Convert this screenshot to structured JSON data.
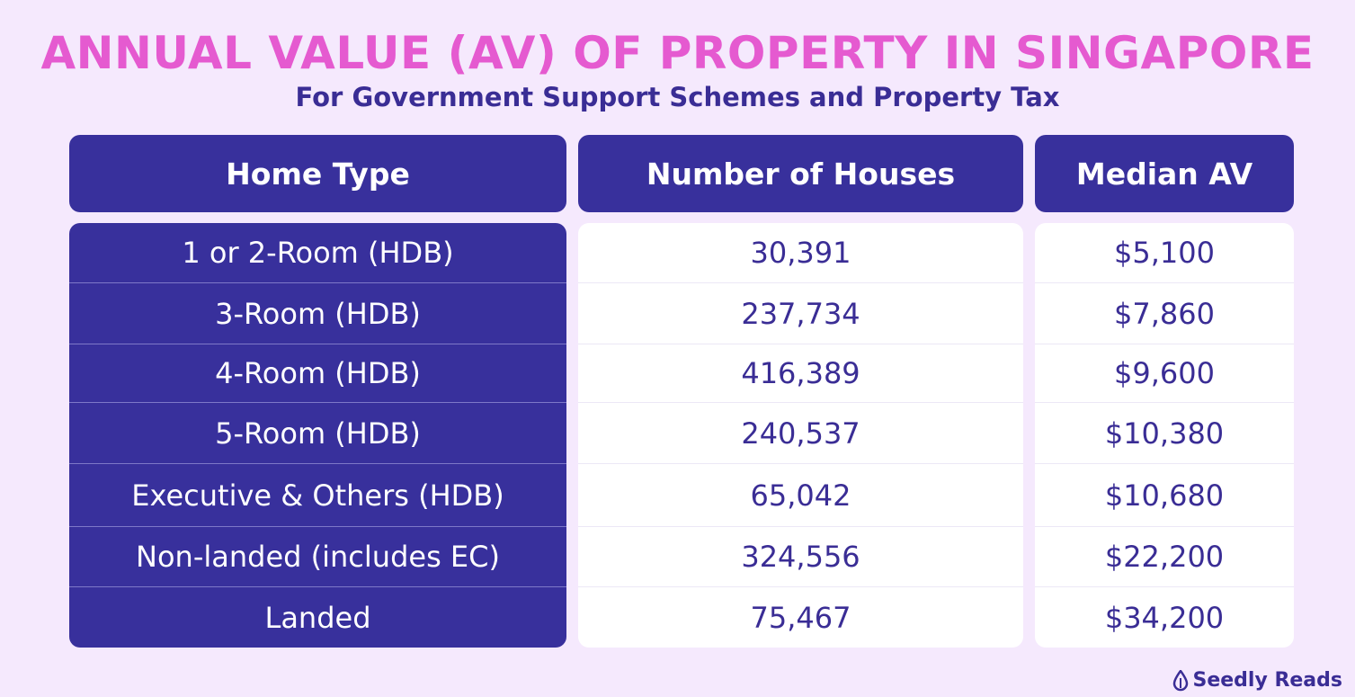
{
  "title": "ANNUAL VALUE (AV) OF PROPERTY IN SINGAPORE",
  "subtitle": "For Government Support Schemes and Property Tax",
  "headers": [
    "Home Type",
    "Number of Houses",
    "Median AV"
  ],
  "rows": [
    {
      "home_type": "1 or 2-Room (HDB)",
      "houses": "30,391",
      "median_av": "$5,100"
    },
    {
      "home_type": "3-Room (HDB)",
      "houses": "237,734",
      "median_av": "$7,860"
    },
    {
      "home_type": "4-Room (HDB)",
      "houses": "416,389",
      "median_av": "$9,600"
    },
    {
      "home_type": "5-Room (HDB)",
      "houses": "240,537",
      "median_av": "$10,380"
    },
    {
      "home_type": "Executive & Others (HDB)",
      "houses": "65,042",
      "median_av": "$10,680"
    },
    {
      "home_type": "Non-landed (includes EC)",
      "houses": "324,556",
      "median_av": "$22,200"
    },
    {
      "home_type": "Landed",
      "houses": "75,467",
      "median_av": "$34,200"
    }
  ],
  "brand": {
    "name": "Seedly Reads",
    "icon": "seedly-drop-icon"
  },
  "colors": {
    "title": "#e55ad0",
    "header_bg": "#38309c",
    "text_dark": "#3a2d95",
    "background": "#f5e9fd"
  }
}
